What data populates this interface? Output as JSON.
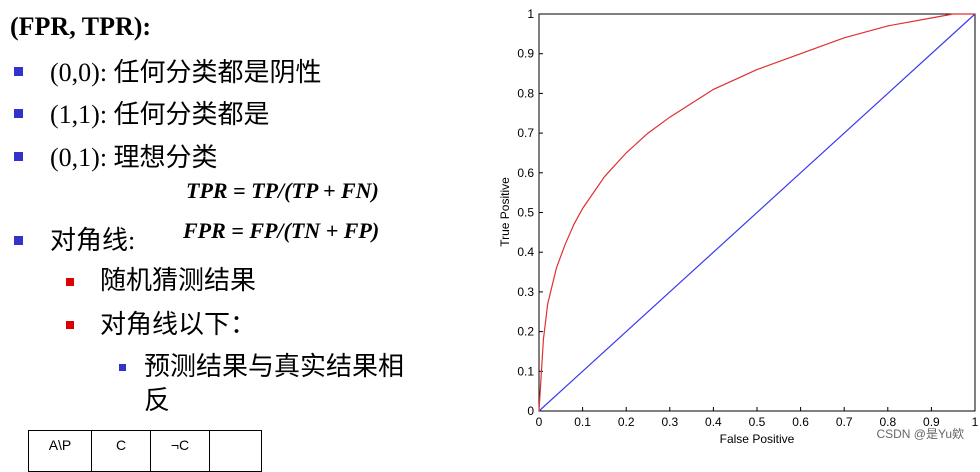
{
  "slide": {
    "title": "(FPR, TPR):",
    "bullets": [
      {
        "text": "(0,0): 任何分类都是阴性"
      },
      {
        "text": "(1,1): 任何分类都是"
      },
      {
        "text": "(0,1): 理想分类"
      },
      {
        "text": "对角线:"
      }
    ],
    "formulas": [
      "TPR = TP/(TP + FN)",
      "FPR = FP/(TN + FP)"
    ],
    "sub_bullets": [
      "随机猜测结果",
      "对角线以下："
    ],
    "sub_sub_bullets": [
      "预测结果与真实结果相",
      "反"
    ],
    "table_headers": [
      "A\\P",
      "C",
      "¬C",
      ""
    ]
  },
  "watermark": "CSDN @是Yu欸",
  "colors": {
    "roc": "#e03030",
    "diagonal": "#3a3af0",
    "bullet": "#3333cc",
    "sub_bullet": "#dd0000"
  },
  "chart_data": {
    "type": "line",
    "xlabel": "False Positive",
    "ylabel": "True Positive",
    "xlim": [
      0,
      1
    ],
    "ylim": [
      0,
      1
    ],
    "xticks": [
      "0",
      "0.1",
      "0.2",
      "0.3",
      "0.4",
      "0.5",
      "0.6",
      "0.7",
      "0.8",
      "0.9",
      "1"
    ],
    "yticks": [
      "0",
      "0.1",
      "0.2",
      "0.3",
      "0.4",
      "0.5",
      "0.6",
      "0.7",
      "0.8",
      "0.9",
      "1"
    ],
    "grid": false,
    "series": [
      {
        "x": [
          0,
          0.005,
          0.01,
          0.02,
          0.04,
          0.06,
          0.08,
          0.1,
          0.15,
          0.2,
          0.25,
          0.3,
          0.4,
          0.5,
          0.6,
          0.7,
          0.8,
          0.9,
          0.95,
          1.0
        ],
        "y": [
          0,
          0.09,
          0.18,
          0.27,
          0.36,
          0.42,
          0.47,
          0.51,
          0.59,
          0.65,
          0.7,
          0.74,
          0.81,
          0.86,
          0.9,
          0.94,
          0.97,
          0.99,
          1.0,
          1.0
        ]
      },
      {
        "x": [
          0,
          1
        ],
        "y": [
          0,
          1
        ]
      }
    ]
  }
}
